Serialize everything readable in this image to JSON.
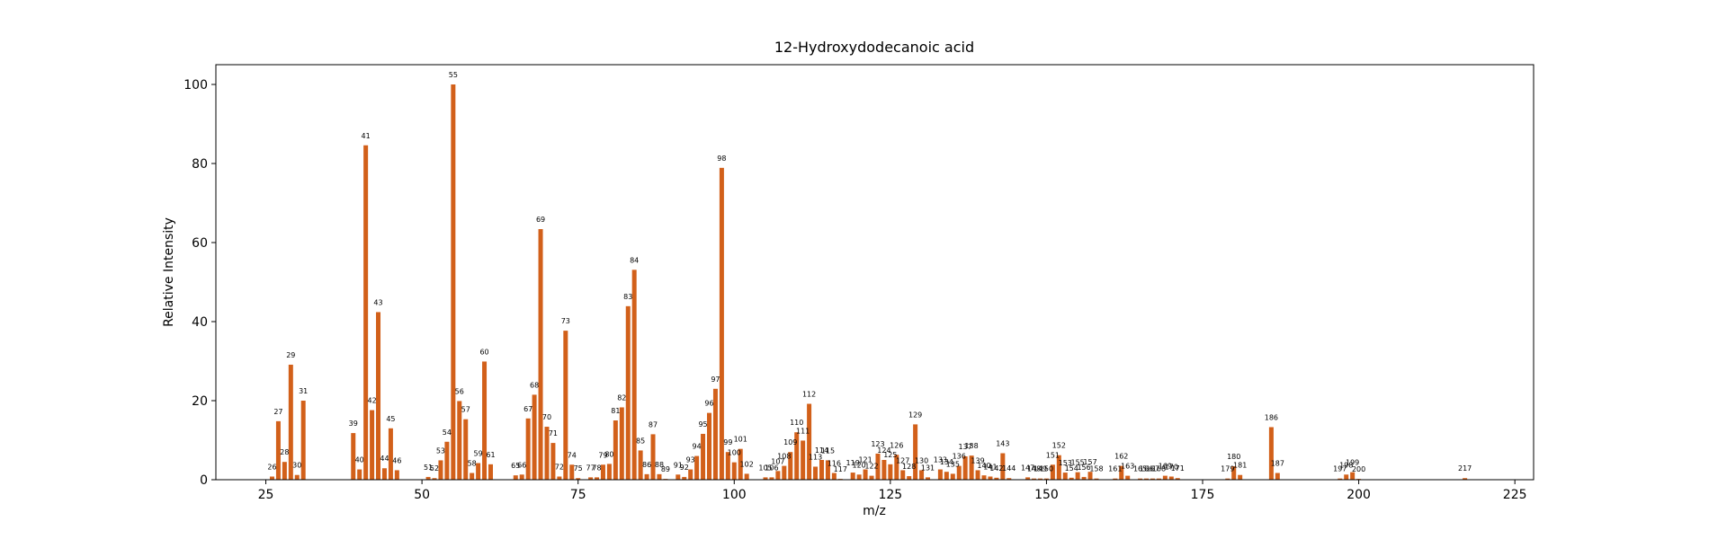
{
  "chart_data": {
    "type": "bar",
    "title": "12-Hydroxydodecanoic acid",
    "xlabel": "m/z",
    "ylabel": "Relative Intensity",
    "xlim": [
      17,
      228
    ],
    "ylim": [
      0,
      105
    ],
    "xticks": [
      25,
      50,
      75,
      100,
      125,
      150,
      175,
      200,
      225
    ],
    "yticks": [
      0,
      20,
      40,
      60,
      80,
      100
    ],
    "grid": false,
    "bar_color": "#d2601a",
    "peaks": [
      {
        "mz": 26,
        "intensity": 0.8,
        "label": "26"
      },
      {
        "mz": 27,
        "intensity": 14.8,
        "label": "27"
      },
      {
        "mz": 28,
        "intensity": 4.5,
        "label": "28"
      },
      {
        "mz": 29,
        "intensity": 29.1,
        "label": "29"
      },
      {
        "mz": 30,
        "intensity": 1.2,
        "label": "30"
      },
      {
        "mz": 31,
        "intensity": 20.0,
        "label": "31"
      },
      {
        "mz": 39,
        "intensity": 11.8,
        "label": "39"
      },
      {
        "mz": 40,
        "intensity": 2.6,
        "label": "40"
      },
      {
        "mz": 41,
        "intensity": 84.6,
        "label": "41"
      },
      {
        "mz": 42,
        "intensity": 17.6,
        "label": "42"
      },
      {
        "mz": 43,
        "intensity": 42.4,
        "label": "43"
      },
      {
        "mz": 44,
        "intensity": 2.9,
        "label": "44"
      },
      {
        "mz": 45,
        "intensity": 13.0,
        "label": "45"
      },
      {
        "mz": 46,
        "intensity": 2.4,
        "label": "46"
      },
      {
        "mz": 51,
        "intensity": 0.7,
        "label": "51"
      },
      {
        "mz": 52,
        "intensity": 0.4,
        "label": "52"
      },
      {
        "mz": 53,
        "intensity": 4.9,
        "label": "53"
      },
      {
        "mz": 54,
        "intensity": 9.6,
        "label": "54"
      },
      {
        "mz": 55,
        "intensity": 100.0,
        "label": "55"
      },
      {
        "mz": 56,
        "intensity": 19.9,
        "label": "56"
      },
      {
        "mz": 57,
        "intensity": 15.3,
        "label": "57"
      },
      {
        "mz": 58,
        "intensity": 1.7,
        "label": "58"
      },
      {
        "mz": 59,
        "intensity": 4.2,
        "label": "59"
      },
      {
        "mz": 60,
        "intensity": 29.9,
        "label": "60"
      },
      {
        "mz": 61,
        "intensity": 3.9,
        "label": "61"
      },
      {
        "mz": 65,
        "intensity": 1.1,
        "label": "65"
      },
      {
        "mz": 66,
        "intensity": 1.3,
        "label": "66"
      },
      {
        "mz": 67,
        "intensity": 15.5,
        "label": "67"
      },
      {
        "mz": 68,
        "intensity": 21.5,
        "label": "68"
      },
      {
        "mz": 69,
        "intensity": 63.4,
        "label": "69"
      },
      {
        "mz": 70,
        "intensity": 13.4,
        "label": "70"
      },
      {
        "mz": 71,
        "intensity": 9.3,
        "label": "71"
      },
      {
        "mz": 72,
        "intensity": 0.8,
        "label": "72"
      },
      {
        "mz": 73,
        "intensity": 37.7,
        "label": "73"
      },
      {
        "mz": 74,
        "intensity": 3.8,
        "label": "74"
      },
      {
        "mz": 75,
        "intensity": 0.4,
        "label": "75"
      },
      {
        "mz": 77,
        "intensity": 0.6,
        "label": "77"
      },
      {
        "mz": 78,
        "intensity": 0.6,
        "label": "78"
      },
      {
        "mz": 79,
        "intensity": 3.8,
        "label": "79"
      },
      {
        "mz": 80,
        "intensity": 4.0,
        "label": "80"
      },
      {
        "mz": 81,
        "intensity": 15.0,
        "label": "81"
      },
      {
        "mz": 82,
        "intensity": 18.3,
        "label": "82"
      },
      {
        "mz": 83,
        "intensity": 43.9,
        "label": "83"
      },
      {
        "mz": 84,
        "intensity": 53.1,
        "label": "84"
      },
      {
        "mz": 85,
        "intensity": 7.4,
        "label": "85"
      },
      {
        "mz": 86,
        "intensity": 1.4,
        "label": "86"
      },
      {
        "mz": 87,
        "intensity": 11.5,
        "label": "87"
      },
      {
        "mz": 88,
        "intensity": 1.4,
        "label": "88"
      },
      {
        "mz": 89,
        "intensity": 0.2,
        "label": "89"
      },
      {
        "mz": 91,
        "intensity": 1.3,
        "label": "91"
      },
      {
        "mz": 92,
        "intensity": 0.7,
        "label": "92"
      },
      {
        "mz": 93,
        "intensity": 2.6,
        "label": "93"
      },
      {
        "mz": 94,
        "intensity": 6.0,
        "label": "94"
      },
      {
        "mz": 95,
        "intensity": 11.6,
        "label": "95"
      },
      {
        "mz": 96,
        "intensity": 16.9,
        "label": "96"
      },
      {
        "mz": 97,
        "intensity": 23.0,
        "label": "97"
      },
      {
        "mz": 98,
        "intensity": 78.9,
        "label": "98"
      },
      {
        "mz": 99,
        "intensity": 7.0,
        "label": "99"
      },
      {
        "mz": 100,
        "intensity": 4.4,
        "label": "100"
      },
      {
        "mz": 101,
        "intensity": 7.8,
        "label": "101"
      },
      {
        "mz": 102,
        "intensity": 1.5,
        "label": "102"
      },
      {
        "mz": 105,
        "intensity": 0.6,
        "label": "105"
      },
      {
        "mz": 106,
        "intensity": 0.6,
        "label": "106"
      },
      {
        "mz": 107,
        "intensity": 2.2,
        "label": "107"
      },
      {
        "mz": 108,
        "intensity": 3.5,
        "label": "108"
      },
      {
        "mz": 109,
        "intensity": 7.0,
        "label": "109"
      },
      {
        "mz": 110,
        "intensity": 12.0,
        "label": "110"
      },
      {
        "mz": 111,
        "intensity": 9.9,
        "label": "111"
      },
      {
        "mz": 112,
        "intensity": 19.2,
        "label": "112"
      },
      {
        "mz": 113,
        "intensity": 3.3,
        "label": "113"
      },
      {
        "mz": 114,
        "intensity": 5.0,
        "label": "114"
      },
      {
        "mz": 115,
        "intensity": 4.9,
        "label": "115"
      },
      {
        "mz": 116,
        "intensity": 1.7,
        "label": "116"
      },
      {
        "mz": 117,
        "intensity": 0.2,
        "label": "117"
      },
      {
        "mz": 119,
        "intensity": 1.8,
        "label": "119"
      },
      {
        "mz": 120,
        "intensity": 1.3,
        "label": "120"
      },
      {
        "mz": 121,
        "intensity": 2.6,
        "label": "121"
      },
      {
        "mz": 122,
        "intensity": 1.0,
        "label": "122"
      },
      {
        "mz": 123,
        "intensity": 6.6,
        "label": "123"
      },
      {
        "mz": 124,
        "intensity": 5.0,
        "label": "124"
      },
      {
        "mz": 125,
        "intensity": 3.9,
        "label": "125"
      },
      {
        "mz": 126,
        "intensity": 6.3,
        "label": "126"
      },
      {
        "mz": 127,
        "intensity": 2.4,
        "label": "127"
      },
      {
        "mz": 128,
        "intensity": 0.9,
        "label": "128"
      },
      {
        "mz": 129,
        "intensity": 14.0,
        "label": "129"
      },
      {
        "mz": 130,
        "intensity": 2.4,
        "label": "130"
      },
      {
        "mz": 131,
        "intensity": 0.6,
        "label": "131"
      },
      {
        "mz": 133,
        "intensity": 2.6,
        "label": "133"
      },
      {
        "mz": 134,
        "intensity": 2.0,
        "label": "134"
      },
      {
        "mz": 135,
        "intensity": 1.5,
        "label": "135"
      },
      {
        "mz": 136,
        "intensity": 3.5,
        "label": "136"
      },
      {
        "mz": 137,
        "intensity": 5.9,
        "label": "137"
      },
      {
        "mz": 138,
        "intensity": 6.1,
        "label": "138"
      },
      {
        "mz": 139,
        "intensity": 2.4,
        "label": "139"
      },
      {
        "mz": 140,
        "intensity": 1.1,
        "label": "140"
      },
      {
        "mz": 141,
        "intensity": 0.8,
        "label": "141"
      },
      {
        "mz": 142,
        "intensity": 0.5,
        "label": "142"
      },
      {
        "mz": 143,
        "intensity": 6.7,
        "label": "143"
      },
      {
        "mz": 144,
        "intensity": 0.4,
        "label": "144"
      },
      {
        "mz": 147,
        "intensity": 0.6,
        "label": "147"
      },
      {
        "mz": 148,
        "intensity": 0.3,
        "label": "148"
      },
      {
        "mz": 149,
        "intensity": 0.3,
        "label": "149"
      },
      {
        "mz": 150,
        "intensity": 0.3,
        "label": "150"
      },
      {
        "mz": 151,
        "intensity": 3.8,
        "label": "151"
      },
      {
        "mz": 152,
        "intensity": 6.2,
        "label": "152"
      },
      {
        "mz": 153,
        "intensity": 1.8,
        "label": "153"
      },
      {
        "mz": 154,
        "intensity": 0.5,
        "label": "154"
      },
      {
        "mz": 155,
        "intensity": 1.9,
        "label": "155"
      },
      {
        "mz": 156,
        "intensity": 0.7,
        "label": "156"
      },
      {
        "mz": 157,
        "intensity": 2.0,
        "label": "157"
      },
      {
        "mz": 158,
        "intensity": 0.3,
        "label": "158"
      },
      {
        "mz": 161,
        "intensity": 0.3,
        "label": "161"
      },
      {
        "mz": 162,
        "intensity": 3.5,
        "label": "162"
      },
      {
        "mz": 163,
        "intensity": 1.0,
        "label": "163"
      },
      {
        "mz": 165,
        "intensity": 0.3,
        "label": "165"
      },
      {
        "mz": 166,
        "intensity": 0.3,
        "label": "166"
      },
      {
        "mz": 167,
        "intensity": 0.3,
        "label": "167"
      },
      {
        "mz": 168,
        "intensity": 0.3,
        "label": "168"
      },
      {
        "mz": 169,
        "intensity": 1.0,
        "label": "169"
      },
      {
        "mz": 170,
        "intensity": 0.8,
        "label": "170"
      },
      {
        "mz": 171,
        "intensity": 0.4,
        "label": "171"
      },
      {
        "mz": 179,
        "intensity": 0.3,
        "label": "179"
      },
      {
        "mz": 180,
        "intensity": 3.4,
        "label": "180"
      },
      {
        "mz": 181,
        "intensity": 1.2,
        "label": "181"
      },
      {
        "mz": 186,
        "intensity": 13.3,
        "label": "186"
      },
      {
        "mz": 187,
        "intensity": 1.7,
        "label": "187"
      },
      {
        "mz": 197,
        "intensity": 0.3,
        "label": "197"
      },
      {
        "mz": 198,
        "intensity": 1.3,
        "label": "198"
      },
      {
        "mz": 199,
        "intensity": 1.9,
        "label": "199"
      },
      {
        "mz": 200,
        "intensity": 0.2,
        "label": "200"
      },
      {
        "mz": 217,
        "intensity": 0.4,
        "label": "217"
      }
    ]
  }
}
